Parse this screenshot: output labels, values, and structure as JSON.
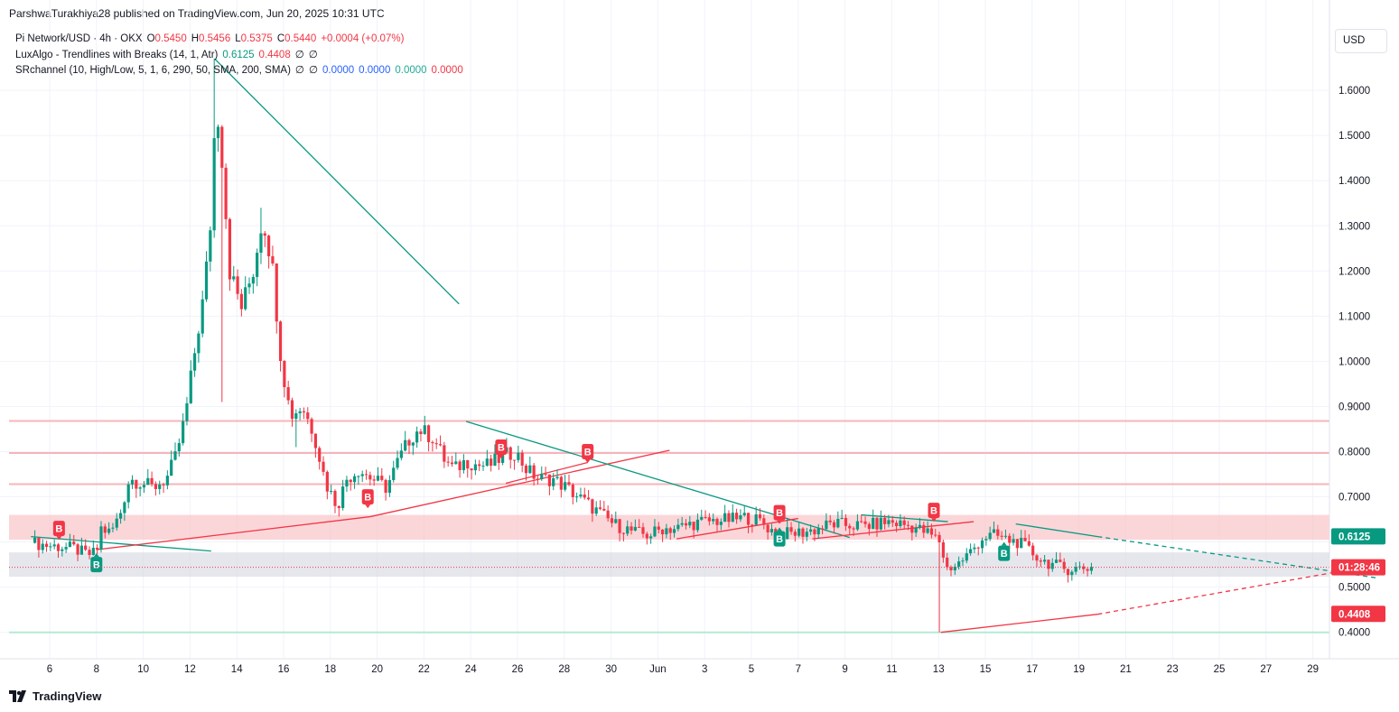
{
  "header": {
    "published_text": "ParshwaTurakhiya28 published on TradingView.com, Jun 20, 2025 10:31 UTC"
  },
  "legend": {
    "symbol": "Pi Network/USD · 4h · OKX",
    "o_label": "O",
    "o_value": "0.5450",
    "h_label": "H",
    "h_value": "0.5456",
    "l_label": "L",
    "l_value": "0.5375",
    "c_label": "C",
    "c_value": "0.5440",
    "change": "+0.0004 (+0.07%)",
    "ind1_name": "LuxAlgo - Trendlines with Breaks (14, 1, Atr)",
    "ind1_v1": "0.6125",
    "ind1_v2": "0.4408",
    "ind1_v3": "∅",
    "ind1_v4": "∅",
    "ind2_name": "SRchannel (10, High/Low, 5, 1, 6, 290, 50, SMA, 200, SMA)",
    "ind2_v1": "∅",
    "ind2_v2": "∅",
    "ind2_v3": "0.0000",
    "ind2_v4": "0.0000",
    "ind2_v5": "0.0000",
    "ind2_v6": "0.0000"
  },
  "currency_button": "USD",
  "brand": "TradingView",
  "colors": {
    "up": "#089981",
    "down": "#f23645",
    "zone": "#f7b4b9",
    "grid": "#f0f3fa",
    "gray_zone": "#d1d4dc",
    "support_line": "#b2ebd4"
  },
  "chart_data": {
    "type": "candlestick",
    "title": "Pi Network/USD · 4h · OKX",
    "y_axis": {
      "ticks": [
        1.6,
        1.5,
        1.4,
        1.3,
        1.2,
        1.1,
        1.0,
        0.9,
        0.8,
        0.7,
        0.5,
        0.4
      ],
      "tick_labels": [
        "1.6000",
        "1.5000",
        "1.4000",
        "1.3000",
        "1.2000",
        "1.1000",
        "1.0000",
        "0.9000",
        "0.8000",
        "0.7000",
        "0.5000",
        "0.4000"
      ]
    },
    "x_axis": {
      "tick_labels": [
        "6",
        "8",
        "10",
        "12",
        "14",
        "16",
        "18",
        "20",
        "22",
        "24",
        "26",
        "28",
        "30",
        "Jun",
        "3",
        "5",
        "7",
        "9",
        "11",
        "13",
        "15",
        "17",
        "19",
        "21",
        "23",
        "25",
        "27",
        "29"
      ],
      "tick_day_index": [
        0,
        2,
        4,
        6,
        8,
        10,
        12,
        14,
        16,
        18,
        20,
        22,
        24,
        26,
        28,
        30,
        32,
        34,
        36,
        38,
        40,
        42,
        44,
        46,
        48,
        50,
        52,
        54
      ]
    },
    "price_labels": [
      {
        "text": "0.6125",
        "value": 0.6125,
        "color": "#089981"
      },
      {
        "text": "01:28:46",
        "value": 0.544,
        "color": "#f23645"
      },
      {
        "text": "0.4408",
        "value": 0.4408,
        "color": "#f23645"
      }
    ],
    "zones": [
      {
        "from": 0.605,
        "to": 0.66,
        "color": "#f7b4b9"
      },
      {
        "from": 0.523,
        "to": 0.577,
        "color": "#d1d4dc"
      }
    ],
    "levels": [
      {
        "value": 0.868,
        "color": "#f7b4b9"
      },
      {
        "value": 0.797,
        "color": "#f7b4b9"
      },
      {
        "value": 0.728,
        "color": "#f7b4b9"
      },
      {
        "value": 0.4,
        "color": "#b2ebd4"
      }
    ],
    "last_price": 0.544,
    "path_points": [
      [
        -0.8,
        0.598
      ],
      [
        0,
        0.592
      ],
      [
        1,
        0.586
      ],
      [
        1.6,
        0.572
      ],
      [
        2,
        0.576
      ],
      [
        2.2,
        0.63
      ],
      [
        2.6,
        0.62
      ],
      [
        3.0,
        0.66
      ],
      [
        3.4,
        0.74
      ],
      [
        4.0,
        0.73
      ],
      [
        4.4,
        0.72
      ],
      [
        5.0,
        0.74
      ],
      [
        5.4,
        0.79
      ],
      [
        5.8,
        0.88
      ],
      [
        6.2,
        1.02
      ],
      [
        6.6,
        1.15
      ],
      [
        6.9,
        1.32
      ],
      [
        7.1,
        1.58
      ],
      [
        7.3,
        1.5
      ],
      [
        7.7,
        1.2
      ],
      [
        8.2,
        1.12
      ],
      [
        8.7,
        1.2
      ],
      [
        9.1,
        1.32
      ],
      [
        9.5,
        1.22
      ],
      [
        9.9,
        1.0
      ],
      [
        10.3,
        0.88
      ],
      [
        10.8,
        0.9
      ],
      [
        11.3,
        0.84
      ],
      [
        11.8,
        0.73
      ],
      [
        12.3,
        0.68
      ],
      [
        12.7,
        0.74
      ],
      [
        13.2,
        0.76
      ],
      [
        13.8,
        0.74
      ],
      [
        14.4,
        0.72
      ],
      [
        14.9,
        0.78
      ],
      [
        15.4,
        0.83
      ],
      [
        15.8,
        0.85
      ],
      [
        16.4,
        0.83
      ],
      [
        16.9,
        0.78
      ],
      [
        17.3,
        0.76
      ],
      [
        17.8,
        0.78
      ],
      [
        18.3,
        0.77
      ],
      [
        18.8,
        0.77
      ],
      [
        19.4,
        0.79
      ],
      [
        19.9,
        0.8
      ],
      [
        20.4,
        0.76
      ],
      [
        20.9,
        0.74
      ],
      [
        21.5,
        0.74
      ],
      [
        22.1,
        0.72
      ],
      [
        22.6,
        0.7
      ],
      [
        23.1,
        0.68
      ],
      [
        23.6,
        0.66
      ],
      [
        24.1,
        0.64
      ],
      [
        24.6,
        0.63
      ],
      [
        25.1,
        0.62
      ],
      [
        25.6,
        0.615
      ],
      [
        26.2,
        0.63
      ],
      [
        26.8,
        0.63
      ],
      [
        27.4,
        0.64
      ],
      [
        28.0,
        0.645
      ],
      [
        28.6,
        0.648
      ],
      [
        29.2,
        0.65
      ],
      [
        29.8,
        0.655
      ],
      [
        30.4,
        0.645
      ],
      [
        31.0,
        0.62
      ],
      [
        31.6,
        0.618
      ],
      [
        32.2,
        0.622
      ],
      [
        32.8,
        0.628
      ],
      [
        33.4,
        0.64
      ],
      [
        34.0,
        0.638
      ],
      [
        34.6,
        0.636
      ],
      [
        35.2,
        0.638
      ],
      [
        35.8,
        0.645
      ],
      [
        36.4,
        0.64
      ],
      [
        37.0,
        0.632
      ],
      [
        37.6,
        0.618
      ],
      [
        38.1,
        0.6
      ],
      [
        38.3,
        0.54
      ],
      [
        38.8,
        0.55
      ],
      [
        39.4,
        0.58
      ],
      [
        39.9,
        0.61
      ],
      [
        40.4,
        0.615
      ],
      [
        40.9,
        0.605
      ],
      [
        41.4,
        0.6
      ],
      [
        41.9,
        0.58
      ],
      [
        42.4,
        0.56
      ],
      [
        42.9,
        0.55
      ],
      [
        43.4,
        0.54
      ],
      [
        44.0,
        0.542
      ],
      [
        44.6,
        0.544
      ]
    ],
    "spikes": [
      {
        "day": 7.0,
        "high": 1.67
      },
      {
        "day": 7.4,
        "low": 0.91
      },
      {
        "day": 9.1,
        "high": 1.34
      },
      {
        "day": 10.6,
        "low": 0.81
      },
      {
        "day": 38.1,
        "low": 0.4
      }
    ],
    "trendlines": [
      {
        "x1": 7.05,
        "y1": 1.67,
        "x2": 17.5,
        "y2": 1.127,
        "color": "#089981",
        "dash": false
      },
      {
        "x1": -0.8,
        "y1": 0.612,
        "x2": 6.9,
        "y2": 0.58,
        "color": "#089981",
        "dash": false
      },
      {
        "x1": 2.0,
        "y1": 0.583,
        "x2": 13.7,
        "y2": 0.656,
        "color": "#f23645",
        "dash": false
      },
      {
        "x1": 13.7,
        "y1": 0.656,
        "x2": 26.5,
        "y2": 0.803,
        "color": "#f23645",
        "dash": false
      },
      {
        "x1": 17.8,
        "y1": 0.867,
        "x2": 34.2,
        "y2": 0.61,
        "color": "#089981",
        "dash": false
      },
      {
        "x1": 19.5,
        "y1": 0.73,
        "x2": 23.0,
        "y2": 0.776,
        "color": "#f23645",
        "dash": false
      },
      {
        "x1": 26.8,
        "y1": 0.607,
        "x2": 32.0,
        "y2": 0.652,
        "color": "#f23645",
        "dash": false
      },
      {
        "x1": 32.6,
        "y1": 0.607,
        "x2": 39.5,
        "y2": 0.645,
        "color": "#f23645",
        "dash": false
      },
      {
        "x1": 34.7,
        "y1": 0.66,
        "x2": 38.4,
        "y2": 0.645,
        "color": "#089981",
        "dash": false
      },
      {
        "x1": 41.3,
        "y1": 0.64,
        "x2": 44.8,
        "y2": 0.612,
        "color": "#089981",
        "dash": false
      },
      {
        "x1": 44.8,
        "y1": 0.612,
        "x2": 56.8,
        "y2": 0.52,
        "color": "#089981",
        "dash": true
      },
      {
        "x1": 38.1,
        "y1": 0.4,
        "x2": 44.8,
        "y2": 0.44,
        "color": "#f23645",
        "dash": false
      },
      {
        "x1": 44.8,
        "y1": 0.44,
        "x2": 56.8,
        "y2": 0.55,
        "color": "#f23645",
        "dash": true
      }
    ],
    "markers": [
      {
        "label": "B",
        "day": 0.4,
        "value": 0.605,
        "color": "#f23645",
        "pos": "above"
      },
      {
        "label": "B",
        "day": 2.0,
        "value": 0.575,
        "color": "#089981",
        "pos": "below"
      },
      {
        "label": "B",
        "day": 13.6,
        "value": 0.675,
        "color": "#f23645",
        "pos": "above"
      },
      {
        "label": "B",
        "day": 19.3,
        "value": 0.785,
        "color": "#f23645",
        "pos": "above"
      },
      {
        "label": "B",
        "day": 23.0,
        "value": 0.775,
        "color": "#f23645",
        "pos": "above"
      },
      {
        "label": "B",
        "day": 31.2,
        "value": 0.64,
        "color": "#f23645",
        "pos": "above"
      },
      {
        "label": "B",
        "day": 31.2,
        "value": 0.632,
        "color": "#089981",
        "pos": "below"
      },
      {
        "label": "B",
        "day": 37.8,
        "value": 0.645,
        "color": "#f23645",
        "pos": "above"
      },
      {
        "label": "B",
        "day": 40.8,
        "value": 0.6,
        "color": "#089981",
        "pos": "below"
      }
    ]
  }
}
